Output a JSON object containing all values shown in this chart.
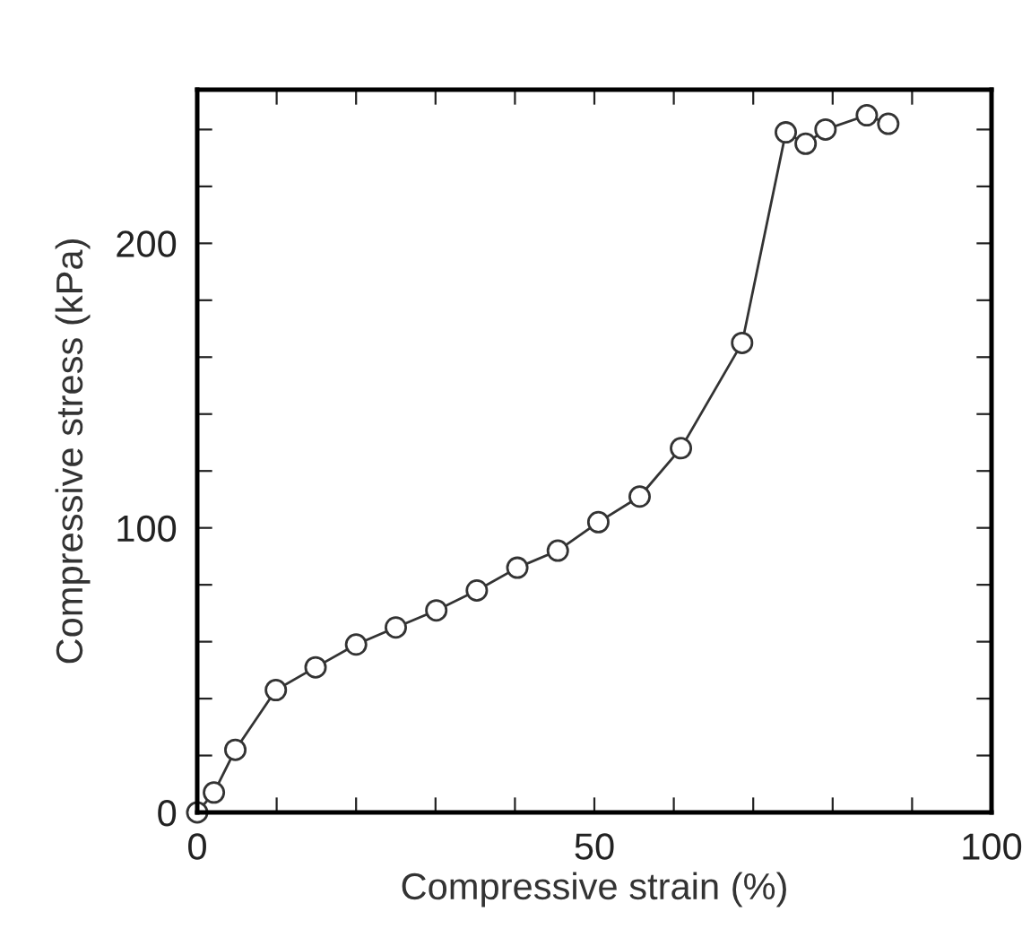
{
  "chart_data": {
    "type": "line",
    "xlabel": "Compressive strain (%)",
    "ylabel": "Compressive stress (kPa)",
    "x": [
      0,
      2.1,
      4.8,
      9.9,
      14.9,
      20,
      25,
      30.1,
      35.2,
      40.3,
      45.4,
      50.5,
      55.7,
      60.9,
      68.6,
      74.1,
      76.6,
      79.1,
      84.3,
      87
    ],
    "series": [
      {
        "color": "#333333",
        "values": [
          0,
          7,
          22,
          43,
          51,
          59,
          65,
          71,
          78,
          86,
          92,
          102,
          111,
          128,
          165,
          239,
          235,
          240,
          245,
          242
        ]
      }
    ],
    "marker": "circle",
    "line_style": "solid",
    "xlim": [
      0,
      100
    ],
    "ylim": [
      0,
      254
    ],
    "xticks": [
      0,
      {
        "value": 10,
        "label": null
      },
      {
        "value": 20,
        "label": null
      },
      {
        "value": 30,
        "label": null
      },
      {
        "value": 40,
        "label": null
      },
      50,
      {
        "value": 60,
        "label": null
      },
      {
        "value": 70,
        "label": null
      },
      {
        "value": 80,
        "label": null
      },
      {
        "value": 90,
        "label": null
      },
      100
    ],
    "yticks": [
      0,
      {
        "value": 20,
        "label": null
      },
      {
        "value": 40,
        "label": null
      },
      {
        "value": 60,
        "label": null
      },
      {
        "value": 80,
        "label": null
      },
      100,
      {
        "value": 120,
        "label": null
      },
      {
        "value": 140,
        "label": null
      },
      {
        "value": 160,
        "label": null
      },
      {
        "value": 180,
        "label": null
      },
      200,
      {
        "value": 220,
        "label": null
      },
      {
        "value": 240,
        "label": null
      }
    ]
  }
}
